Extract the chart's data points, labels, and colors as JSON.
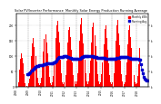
{
  "title": "Monthly Solar Energy Production Running Average",
  "subtitle": "Solar PV/Inverter Performance",
  "bar_color": "#ff0000",
  "avg_color": "#0000cc",
  "bg_color": "#ffffff",
  "plot_bg": "#ffffff",
  "years": [
    "2008",
    "2009",
    "2010",
    "2011",
    "2012",
    "2013",
    "2014",
    "2015",
    "2016",
    "2017",
    "2018"
  ],
  "bar_values": [
    0,
    0,
    15,
    55,
    90,
    110,
    95,
    75,
    40,
    10,
    2,
    0,
    10,
    25,
    55,
    100,
    140,
    160,
    130,
    100,
    65,
    28,
    10,
    5,
    12,
    30,
    70,
    115,
    155,
    170,
    145,
    110,
    68,
    32,
    12,
    6,
    14,
    35,
    80,
    160,
    200,
    215,
    180,
    145,
    88,
    42,
    15,
    7,
    15,
    38,
    85,
    145,
    185,
    195,
    162,
    122,
    80,
    38,
    16,
    8,
    17,
    42,
    90,
    150,
    205,
    225,
    175,
    140,
    88,
    44,
    18,
    9,
    16,
    44,
    85,
    145,
    195,
    210,
    168,
    132,
    82,
    40,
    16,
    8,
    14,
    40,
    80,
    138,
    188,
    202,
    160,
    122,
    75,
    36,
    14,
    7,
    15,
    42,
    88,
    150,
    202,
    218,
    175,
    135,
    84,
    40,
    16,
    8,
    14,
    38,
    80,
    138,
    185,
    200,
    162,
    128,
    78,
    36,
    14,
    7,
    12,
    34,
    72,
    128,
    0,
    0,
    0,
    0,
    0,
    0,
    0,
    0
  ],
  "ylim_max": 240,
  "yticks": [
    0,
    50,
    100,
    150,
    200
  ],
  "ytick_labels": [
    "0",
    "50",
    "100",
    "150",
    "200"
  ],
  "right_ytick_labels": [
    "k",
    "k",
    "k",
    "k",
    "k"
  ],
  "avg_marker_size": 1.5,
  "avg_linewidth": 0.5,
  "bar_width": 0.9,
  "grid_color": "#aaaaaa",
  "vline_color": "#888888",
  "legend_colors": [
    "#ff0000",
    "#0000cc",
    "#cc0000"
  ],
  "legend_labels": [
    "Monthly kWh",
    "Running Avg",
    ""
  ]
}
